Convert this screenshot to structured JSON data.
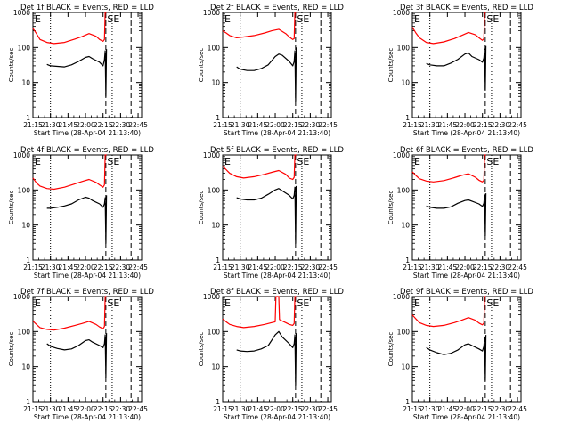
{
  "figure": {
    "footer_date": "28-Apr-04 21:13:40"
  },
  "chart_data": [
    {
      "type": "line",
      "title": "Det 1f BLACK = Events, RED = LLD",
      "ylabel": "Counts/sec",
      "xlabel": "Start Time (28-Apr-04 21:13:40)",
      "x_ticks": [
        "21:15",
        "21:30",
        "21:45",
        "22:00",
        "22:15",
        "22:30",
        "22:45"
      ],
      "y_ticks": [
        "1",
        "10",
        "100",
        "1000"
      ],
      "yscale": "log",
      "ylim": [
        1,
        1000
      ],
      "annotations": [
        "E",
        "SE"
      ],
      "series": [
        {
          "color": "#ff0000",
          "x": [
            21.25,
            21.3,
            21.35,
            21.45,
            21.55,
            21.7,
            21.85,
            21.95,
            22.05,
            22.15,
            22.2,
            22.25,
            22.27,
            22.28,
            22.3
          ],
          "y": [
            350,
            250,
            170,
            140,
            130,
            140,
            175,
            205,
            250,
            210,
            170,
            150,
            170,
            1000,
            1000
          ]
        },
        {
          "color": "#000000",
          "x": [
            21.45,
            21.5,
            21.6,
            21.7,
            21.8,
            21.9,
            22.0,
            22.05,
            22.1,
            22.2,
            22.25,
            22.27,
            22.28,
            22.29,
            22.3
          ],
          "y": [
            33,
            30,
            29,
            28,
            32,
            40,
            52,
            55,
            48,
            38,
            30,
            45,
            80,
            4,
            90
          ]
        }
      ]
    },
    {
      "type": "line",
      "title": "Det 2f BLACK = Events, RED = LLD",
      "ylabel": "Counts/sec",
      "xlabel": "Start Time (28-Apr-04 21:13:40)",
      "x_ticks": [
        "21:15",
        "21:30",
        "21:45",
        "22:00",
        "22:15",
        "22:30",
        "22:45"
      ],
      "y_ticks": [
        "1",
        "10",
        "100",
        "1000"
      ],
      "yscale": "log",
      "ylim": [
        1,
        1000
      ],
      "annotations": [
        "E",
        "SE"
      ],
      "series": [
        {
          "color": "#ff0000",
          "x": [
            21.25,
            21.3,
            21.35,
            21.45,
            21.55,
            21.7,
            21.85,
            21.95,
            22.05,
            22.15,
            22.2,
            22.25,
            22.27,
            22.28,
            22.3
          ],
          "y": [
            300,
            260,
            220,
            190,
            200,
            220,
            260,
            300,
            330,
            250,
            200,
            170,
            180,
            1000,
            1000
          ]
        },
        {
          "color": "#000000",
          "x": [
            21.45,
            21.5,
            21.6,
            21.7,
            21.8,
            21.9,
            22.0,
            22.05,
            22.1,
            22.2,
            22.25,
            22.27,
            22.28,
            22.29,
            22.3
          ],
          "y": [
            28,
            24,
            22,
            22,
            25,
            32,
            55,
            65,
            60,
            40,
            30,
            40,
            80,
            3,
            100
          ]
        }
      ]
    },
    {
      "type": "line",
      "title": "Det 3f BLACK = Events, RED = LLD",
      "ylabel": "Counts/sec",
      "xlabel": "Start Time (28-Apr-04 21:13:40)",
      "x_ticks": [
        "21:15",
        "21:30",
        "21:45",
        "22:00",
        "22:15",
        "22:30",
        "22:45"
      ],
      "y_ticks": [
        "1",
        "10",
        "100",
        "1000"
      ],
      "yscale": "log",
      "ylim": [
        1,
        1000
      ],
      "annotations": [
        "E",
        "SE"
      ],
      "series": [
        {
          "color": "#ff0000",
          "x": [
            21.25,
            21.3,
            21.35,
            21.45,
            21.55,
            21.7,
            21.85,
            21.95,
            22.05,
            22.15,
            22.2,
            22.25,
            22.27,
            22.28,
            22.3
          ],
          "y": [
            380,
            260,
            190,
            140,
            130,
            145,
            180,
            220,
            270,
            230,
            190,
            160,
            180,
            1000,
            1000
          ]
        },
        {
          "color": "#000000",
          "x": [
            21.45,
            21.5,
            21.6,
            21.7,
            21.8,
            21.9,
            22.0,
            22.05,
            22.1,
            22.2,
            22.25,
            22.27,
            22.28,
            22.29,
            22.3
          ],
          "y": [
            35,
            32,
            30,
            30,
            36,
            46,
            65,
            70,
            55,
            45,
            38,
            50,
            90,
            6,
            110
          ]
        }
      ]
    },
    {
      "type": "line",
      "title": "Det 4f BLACK = Events, RED = LLD",
      "ylabel": "Counts/sec",
      "xlabel": "Start Time (28-Apr-04 21:13:40)",
      "x_ticks": [
        "21:15",
        "21:30",
        "21:45",
        "22:00",
        "22:15",
        "22:30",
        "22:45"
      ],
      "y_ticks": [
        "1",
        "10",
        "100",
        "1000"
      ],
      "yscale": "log",
      "ylim": [
        1,
        1000
      ],
      "annotations": [
        "E",
        "SE"
      ],
      "series": [
        {
          "color": "#ff0000",
          "x": [
            21.25,
            21.3,
            21.35,
            21.45,
            21.55,
            21.7,
            21.85,
            21.95,
            22.05,
            22.15,
            22.2,
            22.25,
            22.27,
            22.28,
            22.3
          ],
          "y": [
            220,
            160,
            130,
            110,
            105,
            120,
            150,
            175,
            200,
            165,
            140,
            120,
            140,
            1000,
            1000
          ]
        },
        {
          "color": "#000000",
          "x": [
            21.45,
            21.5,
            21.6,
            21.7,
            21.8,
            21.9,
            22.0,
            22.05,
            22.1,
            22.2,
            22.25,
            22.27,
            22.28,
            22.29,
            22.3
          ],
          "y": [
            30,
            30,
            32,
            35,
            40,
            52,
            62,
            58,
            50,
            40,
            32,
            40,
            60,
            3,
            70
          ]
        }
      ]
    },
    {
      "type": "line",
      "title": "Det 5f BLACK = Events, RED = LLD",
      "ylabel": "Counts/sec",
      "xlabel": "Start Time (28-Apr-04 21:13:40)",
      "x_ticks": [
        "21:15",
        "21:30",
        "21:45",
        "22:00",
        "22:15",
        "22:30",
        "22:45"
      ],
      "y_ticks": [
        "1",
        "10",
        "100",
        "1000"
      ],
      "yscale": "log",
      "ylim": [
        1,
        1000
      ],
      "annotations": [
        "E",
        "SE"
      ],
      "series": [
        {
          "color": "#ff0000",
          "x": [
            21.25,
            21.3,
            21.35,
            21.45,
            21.55,
            21.7,
            21.85,
            21.95,
            22.05,
            22.15,
            22.2,
            22.25,
            22.27,
            22.28,
            22.3
          ],
          "y": [
            480,
            380,
            300,
            240,
            220,
            240,
            280,
            320,
            360,
            280,
            220,
            200,
            230,
            1000,
            1000
          ]
        },
        {
          "color": "#000000",
          "x": [
            21.45,
            21.5,
            21.6,
            21.7,
            21.8,
            21.9,
            22.0,
            22.05,
            22.1,
            22.2,
            22.25,
            22.27,
            22.28,
            22.29,
            22.3
          ],
          "y": [
            60,
            55,
            52,
            52,
            58,
            75,
            100,
            110,
            95,
            70,
            55,
            70,
            120,
            3,
            130
          ]
        }
      ]
    },
    {
      "type": "line",
      "title": "Det 6f BLACK = Events, RED = LLD",
      "ylabel": "Counts/sec",
      "xlabel": "Start Time (28-Apr-04 21:13:40)",
      "x_ticks": [
        "21:15",
        "21:30",
        "21:45",
        "22:00",
        "22:15",
        "22:30",
        "22:45"
      ],
      "y_ticks": [
        "1",
        "10",
        "100",
        "1000"
      ],
      "yscale": "log",
      "ylim": [
        1,
        1000
      ],
      "annotations": [
        "E",
        "SE"
      ],
      "series": [
        {
          "color": "#ff0000",
          "x": [
            21.25,
            21.3,
            21.35,
            21.45,
            21.55,
            21.7,
            21.85,
            21.95,
            22.05,
            22.15,
            22.2,
            22.25,
            22.27,
            22.28,
            22.3
          ],
          "y": [
            330,
            260,
            210,
            180,
            170,
            185,
            225,
            260,
            290,
            230,
            190,
            170,
            190,
            1000,
            1000
          ]
        },
        {
          "color": "#000000",
          "x": [
            21.45,
            21.5,
            21.6,
            21.7,
            21.8,
            21.9,
            22.0,
            22.05,
            22.1,
            22.2,
            22.25,
            22.27,
            22.28,
            22.29,
            22.3
          ],
          "y": [
            35,
            32,
            30,
            30,
            33,
            42,
            50,
            52,
            48,
            40,
            34,
            42,
            75,
            5,
            80
          ]
        }
      ]
    },
    {
      "type": "line",
      "title": "Det 7f BLACK = Events, RED = LLD",
      "ylabel": "Counts/sec",
      "xlabel": "Start Time (28-Apr-04 21:13:40)",
      "x_ticks": [
        "21:15",
        "21:30",
        "21:45",
        "22:00",
        "22:15",
        "22:30",
        "22:45"
      ],
      "y_ticks": [
        "1",
        "10",
        "100",
        "1000"
      ],
      "yscale": "log",
      "ylim": [
        1,
        1000
      ],
      "annotations": [
        "E",
        "SE"
      ],
      "series": [
        {
          "color": "#ff0000",
          "x": [
            21.25,
            21.3,
            21.35,
            21.45,
            21.55,
            21.7,
            21.85,
            21.95,
            22.05,
            22.15,
            22.2,
            22.25,
            22.27,
            22.28,
            22.3
          ],
          "y": [
            200,
            160,
            130,
            115,
            110,
            125,
            150,
            170,
            195,
            160,
            135,
            120,
            140,
            1000,
            1000
          ]
        },
        {
          "color": "#000000",
          "x": [
            21.45,
            21.5,
            21.6,
            21.7,
            21.8,
            21.9,
            22.0,
            22.05,
            22.1,
            22.2,
            22.25,
            22.27,
            22.28,
            22.29,
            22.3
          ],
          "y": [
            45,
            38,
            33,
            30,
            32,
            40,
            55,
            58,
            50,
            40,
            35,
            45,
            80,
            5,
            90
          ]
        }
      ]
    },
    {
      "type": "line",
      "title": "Det 8f BLACK = Events, RED = LLD",
      "ylabel": "Counts/sec",
      "xlabel": "Start Time (28-Apr-04 21:13:40)",
      "x_ticks": [
        "21:15",
        "21:30",
        "21:45",
        "22:00",
        "22:15",
        "22:30",
        "22:45"
      ],
      "y_ticks": [
        "1",
        "10",
        "100",
        "1000"
      ],
      "yscale": "log",
      "ylim": [
        1,
        1000
      ],
      "annotations": [
        "E",
        "SE"
      ],
      "series": [
        {
          "color": "#ff0000",
          "x": [
            21.25,
            21.3,
            21.35,
            21.45,
            21.55,
            21.7,
            21.85,
            21.95,
            22.0,
            22.01,
            22.05,
            22.06,
            22.1,
            22.15,
            22.2,
            22.25,
            22.27,
            22.28,
            22.3
          ],
          "y": [
            230,
            190,
            160,
            140,
            130,
            140,
            160,
            180,
            190,
            1000,
            1000,
            220,
            200,
            180,
            160,
            150,
            170,
            1000,
            1000
          ]
        },
        {
          "color": "#000000",
          "x": [
            21.45,
            21.5,
            21.6,
            21.7,
            21.8,
            21.9,
            22.0,
            22.05,
            22.1,
            22.2,
            22.25,
            22.27,
            22.28,
            22.29,
            22.3
          ],
          "y": [
            30,
            28,
            27,
            28,
            32,
            40,
            80,
            100,
            70,
            45,
            35,
            45,
            80,
            3,
            90
          ]
        }
      ]
    },
    {
      "type": "line",
      "title": "Det 9f BLACK = Events, RED = LLD",
      "ylabel": "Counts/sec",
      "xlabel": "Start Time (28-Apr-04 21:13:40)",
      "x_ticks": [
        "21:15",
        "21:30",
        "21:45",
        "22:00",
        "22:15",
        "22:30",
        "22:45"
      ],
      "y_ticks": [
        "1",
        "10",
        "100",
        "1000"
      ],
      "yscale": "log",
      "ylim": [
        1,
        1000
      ],
      "annotations": [
        "E",
        "SE"
      ],
      "series": [
        {
          "color": "#ff0000",
          "x": [
            21.25,
            21.3,
            21.35,
            21.45,
            21.55,
            21.7,
            21.85,
            21.95,
            22.05,
            22.15,
            22.2,
            22.25,
            22.27,
            22.28,
            22.3
          ],
          "y": [
            300,
            230,
            180,
            150,
            140,
            150,
            180,
            210,
            250,
            210,
            175,
            155,
            175,
            1000,
            1000
          ]
        },
        {
          "color": "#000000",
          "x": [
            21.45,
            21.5,
            21.6,
            21.7,
            21.8,
            21.9,
            22.0,
            22.05,
            22.1,
            22.2,
            22.25,
            22.27,
            22.28,
            22.29,
            22.3
          ],
          "y": [
            35,
            30,
            25,
            22,
            24,
            30,
            42,
            45,
            40,
            32,
            28,
            38,
            70,
            4,
            80
          ]
        }
      ]
    }
  ],
  "markers": {
    "dotted_times": [
      21.5,
      22.38
    ],
    "dashed_times": [
      22.29,
      22.65
    ]
  }
}
